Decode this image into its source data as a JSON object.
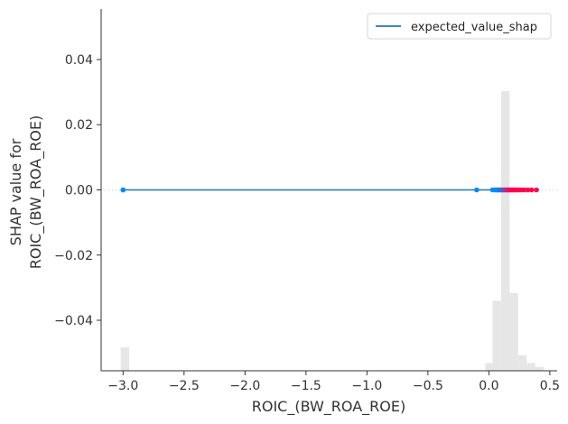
{
  "chart_data": {
    "type": "scatter",
    "title": "",
    "xlabel": "ROIC_(BW_ROA_ROE)",
    "ylabel_lines": [
      "SHAP value for",
      "ROIC_(BW_ROA_ROE)"
    ],
    "xlim": [
      -3.18,
      0.56
    ],
    "ylim": [
      -0.0555,
      0.0555
    ],
    "x_ticks": [
      -3.0,
      -2.5,
      -2.0,
      -1.5,
      -1.0,
      -0.5,
      0.0,
      0.5
    ],
    "x_tick_labels": [
      "−3.0",
      "−2.5",
      "−2.0",
      "−1.5",
      "−1.0",
      "−0.5",
      "0.0",
      "0.5"
    ],
    "y_ticks": [
      0.04,
      0.02,
      0.0,
      -0.02,
      -0.04
    ],
    "y_tick_labels": [
      "0.04",
      "0.02",
      "0.00",
      "−0.02",
      "−0.04"
    ],
    "expected_value_line": {
      "name": "expected_value_shap",
      "y": 0.0,
      "x_range": [
        -3.0,
        0.14
      ],
      "color": "#1f77b4"
    },
    "points": {
      "y": 0.0,
      "x": [
        -3.0,
        -3.0,
        -0.1,
        0.03,
        0.05,
        0.06,
        0.07,
        0.08,
        0.09,
        0.1,
        0.11,
        0.12,
        0.13,
        0.14,
        0.15,
        0.16,
        0.17,
        0.18,
        0.19,
        0.2,
        0.21,
        0.22,
        0.23,
        0.25,
        0.27,
        0.29,
        0.32,
        0.35,
        0.39
      ],
      "color_low": "#008bfb",
      "color_high": "#ff0052"
    },
    "histogram": {
      "color": "#e6e6e6",
      "bins": [
        {
          "x0": -3.02,
          "x1": -2.95,
          "count": 3
        },
        {
          "x0": -0.03,
          "x1": 0.03,
          "count": 1
        },
        {
          "x0": 0.03,
          "x1": 0.1,
          "count": 9
        },
        {
          "x0": 0.1,
          "x1": 0.17,
          "count": 36
        },
        {
          "x0": 0.17,
          "x1": 0.24,
          "count": 10
        },
        {
          "x0": 0.24,
          "x1": 0.31,
          "count": 2
        },
        {
          "x0": 0.31,
          "x1": 0.38,
          "count": 1
        },
        {
          "x0": 0.38,
          "x1": 0.45,
          "count": 0.5
        }
      ],
      "max_count": 36
    },
    "legend": {
      "position": "top-right",
      "entries": [
        "expected_value_shap"
      ]
    }
  }
}
